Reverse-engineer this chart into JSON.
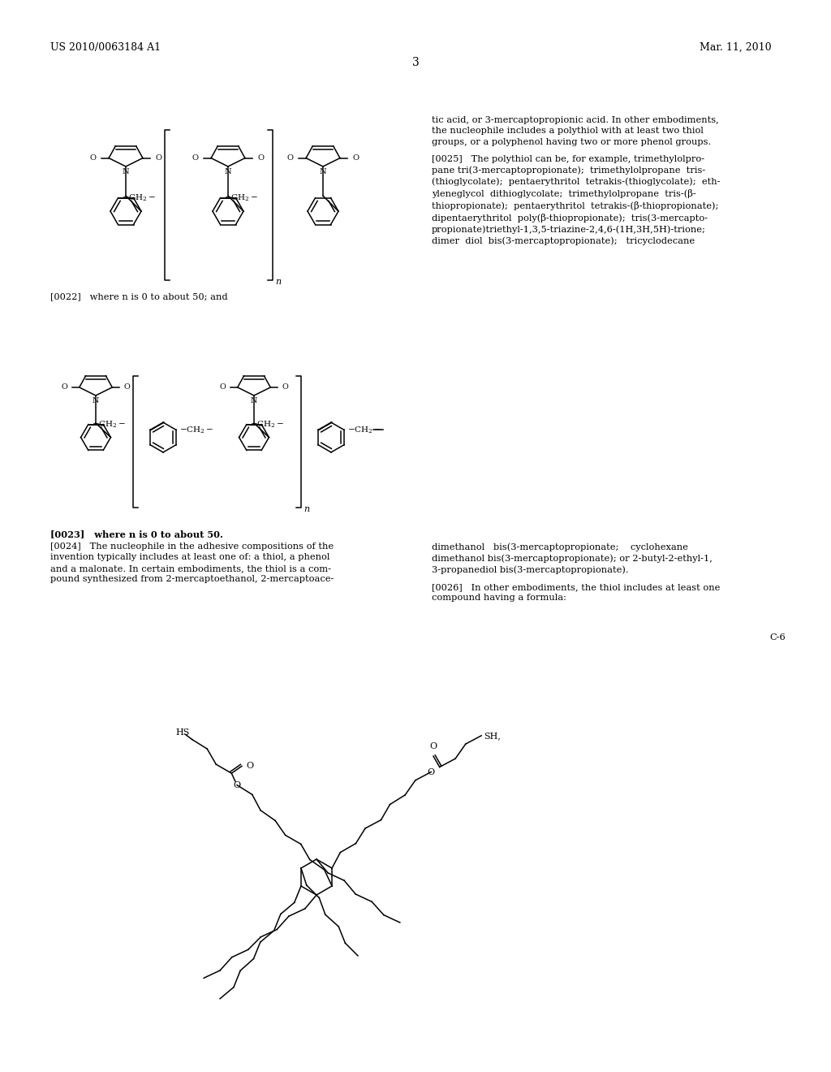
{
  "bg": "#ffffff",
  "header_left": "US 2010/0063184 A1",
  "header_right": "Mar. 11, 2010",
  "page_number": "3",
  "right_text_top": "tic acid, or 3-mercaptopropionic acid. In other embodiments,\nthe nucleophile includes a polythiol with at least two thiol\ngroups, or a polyphenol having two or more phenol groups.",
  "right_text_0025": "[0025]   The polythiol can be, for example, trimethylolpro-\npane tri(3-mercaptopropionate);  trimethylolpropane  tris-\n(thioglycolate);  pentaerythritol  tetrakis-(thioglycolate);  eth-\nyleneglycol  dithioglycolate;  trimethylolpropane  tris-(β-\nthiopropionate);  pentaerythritol  tetrakis-(β-thiopropionate);\ndipentaerythritol  poly(β-thiopropionate);  tris(3-mercapto-\npropionate)triethyl-1,3,5-triazine-2,4,6-(1H,3H,5H)-trione;\ndimer  diol  bis(3-mercaptopropionate);   tricyclodecane",
  "label_0022": "[0022]   where n is 0 to about 50; and",
  "label_0023": "[0023]   where n is 0 to about 50.",
  "left_text_0024": "[0024]   The nucleophile in the adhesive compositions of the\ninvention typically includes at least one of: a thiol, a phenol\nand a malonate. In certain embodiments, the thiol is a com-\npound synthesized from 2-mercaptoethanol, 2-mercaptoace-",
  "right_text_bottom1": "dimethanol   bis(3-mercaptopropionate;    cyclohexane\ndimethanol bis(3-mercaptopropionate); or 2-butyl-2-ethyl-1,\n3-propanediol bis(3-mercaptopropionate).",
  "right_text_0026": "[0026]   In other embodiments, the thiol includes at least one\ncompound having a formula:",
  "label_C6": "C-6"
}
